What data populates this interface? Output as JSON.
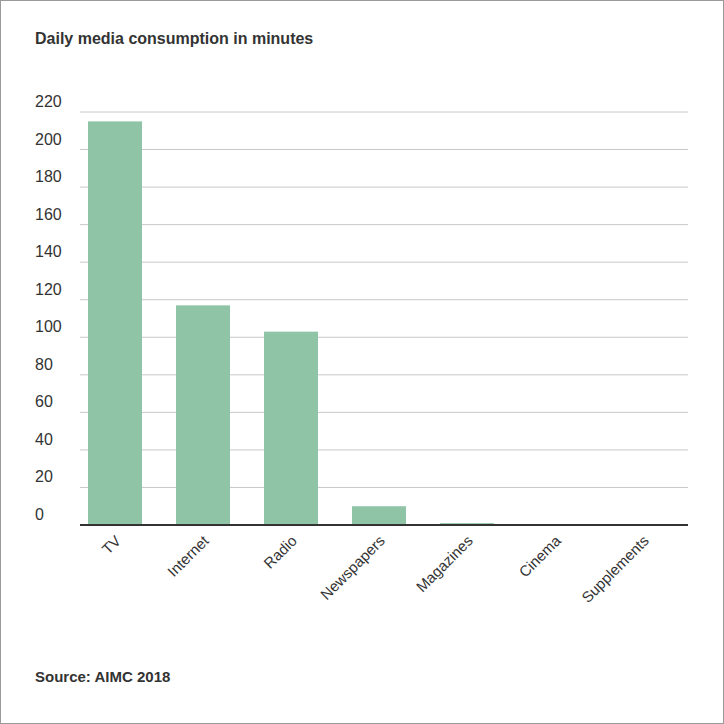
{
  "chart_data": {
    "type": "bar",
    "title": "Daily media consumption in minutes",
    "categories": [
      "TV",
      "Internet",
      "Radio",
      "Newspapers",
      "Magazines",
      "Cinema",
      "Supplements"
    ],
    "values": [
      215,
      117,
      103,
      10,
      1,
      0,
      0
    ],
    "color": "#8fc5a6",
    "ylim": [
      0,
      220
    ],
    "yticks": [
      0,
      20,
      40,
      60,
      80,
      100,
      120,
      140,
      160,
      180,
      200,
      220
    ],
    "grid": true,
    "source": "Source: AIMC 2018"
  }
}
